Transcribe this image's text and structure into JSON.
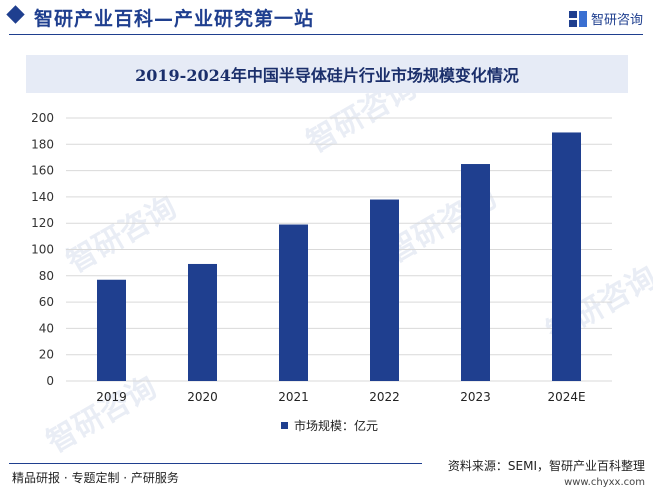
{
  "header": {
    "site_title": "智研产业百科—产业研究第一站",
    "brand_name": "智研咨询",
    "brand_icon": "zhiyan-logo-icon"
  },
  "watermark_text": "智研咨询",
  "colors": {
    "bar": "#1f3f8f",
    "header_accent": "#1f3f8f",
    "title_band": "#e6ebf6",
    "gridline": "#d9d9d9"
  },
  "chart_data": {
    "type": "bar",
    "title": "2019-2024年中国半导体硅片行业市场规模变化情况",
    "categories": [
      "2019",
      "2020",
      "2021",
      "2022",
      "2023",
      "2024E"
    ],
    "series": [
      {
        "name": "市场规模：亿元",
        "values": [
          77,
          89,
          119,
          138,
          165,
          189
        ]
      }
    ],
    "ylim": [
      0,
      200
    ],
    "yticks": [
      0,
      20,
      40,
      60,
      80,
      100,
      120,
      140,
      160,
      180,
      200
    ],
    "grid": true,
    "legend_position": "bottom"
  },
  "footer": {
    "left_text": "精品研报 · 专题定制 · 产研服务",
    "source_text": "资料来源：SEMI，智研产业百科整理",
    "website": "www.chyxx.com"
  }
}
